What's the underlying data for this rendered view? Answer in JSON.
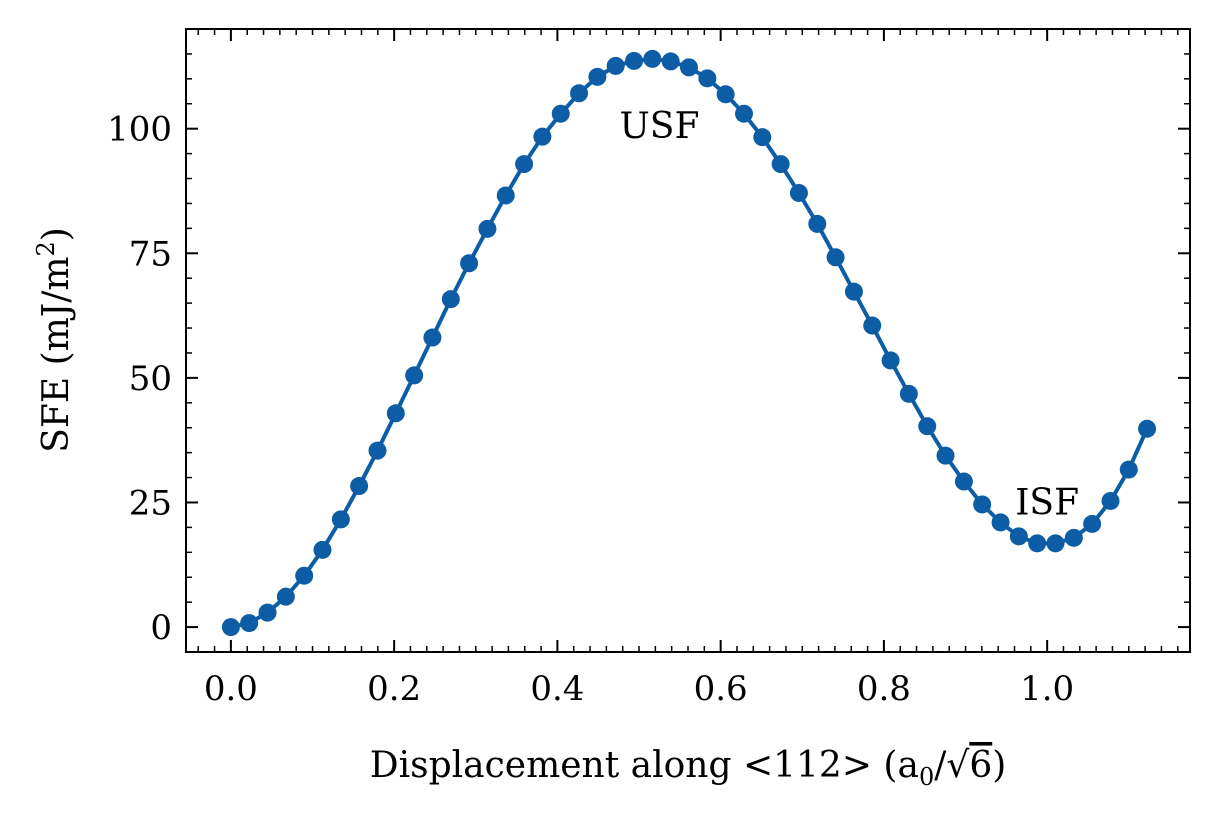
{
  "chart_data": {
    "type": "line",
    "title": "",
    "xlabel": {
      "main": "Displacement along ",
      "direction": "<112>",
      "unit_open": " (a",
      "unit_sub": "0",
      "unit_slash": "/",
      "unit_sqrt": "√",
      "unit_radicand": "6",
      "unit_close": ")"
    },
    "ylabel": {
      "main": "SFE (mJ/m",
      "sup": "2",
      "close": ")"
    },
    "xlim": [
      -0.055,
      1.175
    ],
    "ylim": [
      -5,
      120
    ],
    "xticks": [
      0.0,
      0.2,
      0.4,
      0.6,
      0.8,
      1.0
    ],
    "xtick_labels": [
      "0.0",
      "0.2",
      "0.4",
      "0.6",
      "0.8",
      "1.0"
    ],
    "yticks": [
      0,
      25,
      50,
      75,
      100
    ],
    "ytick_labels": [
      "0",
      "25",
      "50",
      "75",
      "100"
    ],
    "grid": false,
    "series": [
      {
        "color": "#0C5DA5",
        "marker": "circle",
        "x": [
          0.0,
          0.0224,
          0.0449,
          0.0673,
          0.0898,
          0.1122,
          0.1347,
          0.1571,
          0.1796,
          0.202,
          0.2245,
          0.2469,
          0.2694,
          0.2918,
          0.3143,
          0.3367,
          0.3592,
          0.3816,
          0.4041,
          0.4265,
          0.449,
          0.4714,
          0.4939,
          0.5163,
          0.5388,
          0.5612,
          0.5837,
          0.6061,
          0.6286,
          0.651,
          0.6735,
          0.6959,
          0.7184,
          0.7408,
          0.7633,
          0.7857,
          0.8082,
          0.8306,
          0.8531,
          0.8755,
          0.898,
          0.9204,
          0.9429,
          0.9653,
          0.9878,
          1.0102,
          1.0327,
          1.0551,
          1.0776,
          1.1,
          1.1224
        ],
        "y": [
          0,
          0.8,
          2.9,
          6.1,
          10.3,
          15.5,
          21.6,
          28.3,
          35.4,
          42.9,
          50.5,
          58.1,
          65.8,
          73.0,
          79.9,
          86.6,
          92.9,
          98.4,
          103.0,
          107.1,
          110.4,
          112.6,
          113.6,
          114.0,
          113.5,
          112.3,
          110.1,
          106.9,
          103.0,
          98.3,
          92.9,
          87.1,
          80.9,
          74.2,
          67.3,
          60.5,
          53.5,
          46.8,
          40.3,
          34.4,
          29.2,
          24.6,
          21.0,
          18.2,
          16.8,
          16.8,
          17.9,
          20.7,
          25.3,
          31.6,
          39.8
        ]
      }
    ],
    "annotations": [
      {
        "text": "USF",
        "x": 0.525,
        "y": 100.5
      },
      {
        "text": "ISF",
        "x": 1.0,
        "y": 25.0
      }
    ]
  }
}
